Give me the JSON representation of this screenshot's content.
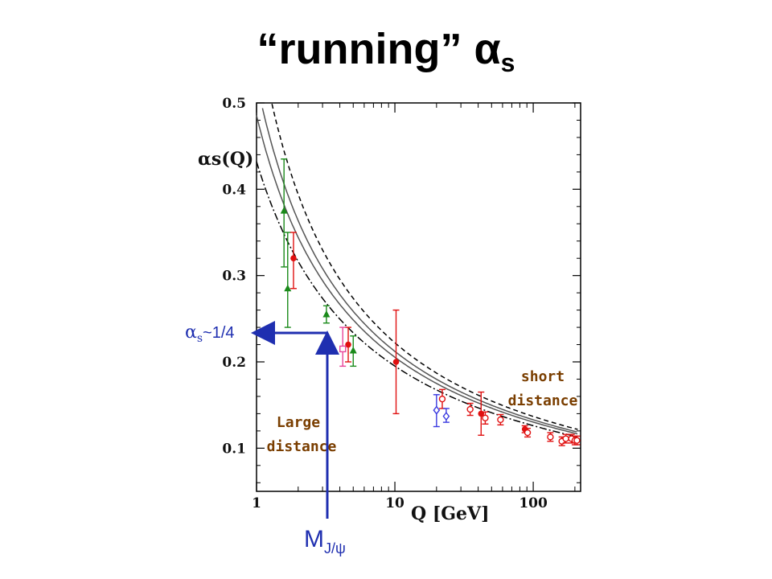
{
  "slide": {
    "title_main": "“running” α",
    "title_sub": "s"
  },
  "chart_data": {
    "type": "scatter",
    "xlabel": "Q [GeV]",
    "ylabel": "αs(Q)",
    "xscale": "log",
    "xlim": [
      1,
      220
    ],
    "ylim": [
      0.05,
      0.5
    ],
    "x_ticks": [
      "1",
      "10",
      "100"
    ],
    "y_ticks": [
      "0.1",
      "0.2",
      "0.3",
      "0.4",
      "0.5"
    ],
    "series": [
      {
        "color": "#1a8a1a",
        "marker": "triangle",
        "points": [
          {
            "x": 1.58,
            "y": 0.375,
            "lo": 0.31,
            "hi": 0.435
          },
          {
            "x": 1.68,
            "y": 0.285,
            "lo": 0.24,
            "hi": 0.35
          },
          {
            "x": 3.2,
            "y": 0.255,
            "lo": 0.245,
            "hi": 0.265
          },
          {
            "x": 5.0,
            "y": 0.213,
            "lo": 0.195,
            "hi": 0.23
          }
        ]
      },
      {
        "color": "#e01010",
        "marker": "filled-circle",
        "points": [
          {
            "x": 1.85,
            "y": 0.32,
            "lo": 0.285,
            "hi": 0.35
          },
          {
            "x": 4.6,
            "y": 0.22,
            "lo": 0.2,
            "hi": 0.24
          },
          {
            "x": 10.2,
            "y": 0.2,
            "lo": 0.14,
            "hi": 0.26
          },
          {
            "x": 42,
            "y": 0.14,
            "lo": 0.115,
            "hi": 0.165
          },
          {
            "x": 87,
            "y": 0.122,
            "lo": 0.118,
            "hi": 0.126
          }
        ]
      },
      {
        "color": "#e01010",
        "marker": "open-circle",
        "points": [
          {
            "x": 22,
            "y": 0.157,
            "lo": 0.146,
            "hi": 0.168
          },
          {
            "x": 35,
            "y": 0.145,
            "lo": 0.138,
            "hi": 0.152
          },
          {
            "x": 45,
            "y": 0.135,
            "lo": 0.128,
            "hi": 0.142
          },
          {
            "x": 58,
            "y": 0.133,
            "lo": 0.127,
            "hi": 0.139
          },
          {
            "x": 91,
            "y": 0.118,
            "lo": 0.113,
            "hi": 0.123
          },
          {
            "x": 133,
            "y": 0.113,
            "lo": 0.108,
            "hi": 0.118
          },
          {
            "x": 161,
            "y": 0.108,
            "lo": 0.103,
            "hi": 0.113
          },
          {
            "x": 172,
            "y": 0.111,
            "lo": 0.106,
            "hi": 0.116
          },
          {
            "x": 189,
            "y": 0.111,
            "lo": 0.106,
            "hi": 0.116
          },
          {
            "x": 200,
            "y": 0.109,
            "lo": 0.104,
            "hi": 0.114
          },
          {
            "x": 207,
            "y": 0.109,
            "lo": 0.104,
            "hi": 0.114
          }
        ]
      },
      {
        "color": "#e8449a",
        "marker": "open-square",
        "points": [
          {
            "x": 4.2,
            "y": 0.215,
            "lo": 0.195,
            "hi": 0.24
          }
        ]
      },
      {
        "color": "#3a3ae0",
        "marker": "open-diamond",
        "points": [
          {
            "x": 20,
            "y": 0.144,
            "lo": 0.125,
            "hi": 0.162
          },
          {
            "x": 23.5,
            "y": 0.137,
            "lo": 0.13,
            "hi": 0.146
          }
        ]
      }
    ],
    "curves": [
      "central",
      "band-upper",
      "band-lower"
    ],
    "annotations": {
      "short_l1": "short",
      "short_l2": "distance",
      "large_l1": "Large",
      "large_l2": "distance",
      "alpha_label": "α",
      "alpha_sub": "s",
      "alpha_val": "~1/4",
      "mjpsi_main": "M",
      "mjpsi_sub": "J/ψ"
    },
    "colors": {
      "arrow": "#1f2fb0",
      "annotation": "#7a3e00"
    }
  }
}
